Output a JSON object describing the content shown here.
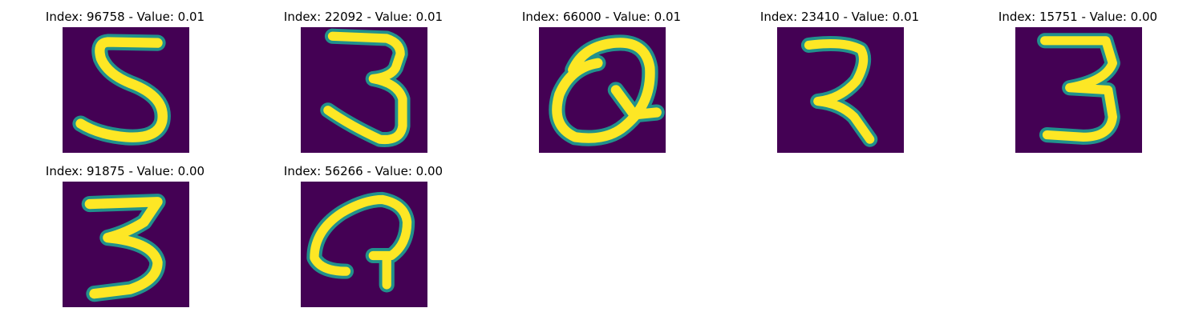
{
  "colors": {
    "background": "#440154",
    "stroke_core": "#fde725",
    "stroke_edge": "#21918c",
    "stroke_mid": "#35b779"
  },
  "panels": [
    {
      "title": "Index: 96758 - Value: 0.01",
      "digit_shape": "5"
    },
    {
      "title": "Index: 22092 - Value: 0.01",
      "digit_shape": "3"
    },
    {
      "title": "Index: 66000 - Value: 0.01",
      "digit_shape": "Q-like"
    },
    {
      "title": "Index: 23410 - Value: 0.01",
      "digit_shape": "2-like"
    },
    {
      "title": "Index: 15751 - Value: 0.00",
      "digit_shape": "3"
    },
    {
      "title": "Index: 91875 - Value: 0.00",
      "digit_shape": "3"
    },
    {
      "title": "Index: 56266 - Value: 0.00",
      "digit_shape": "Q-like"
    }
  ]
}
